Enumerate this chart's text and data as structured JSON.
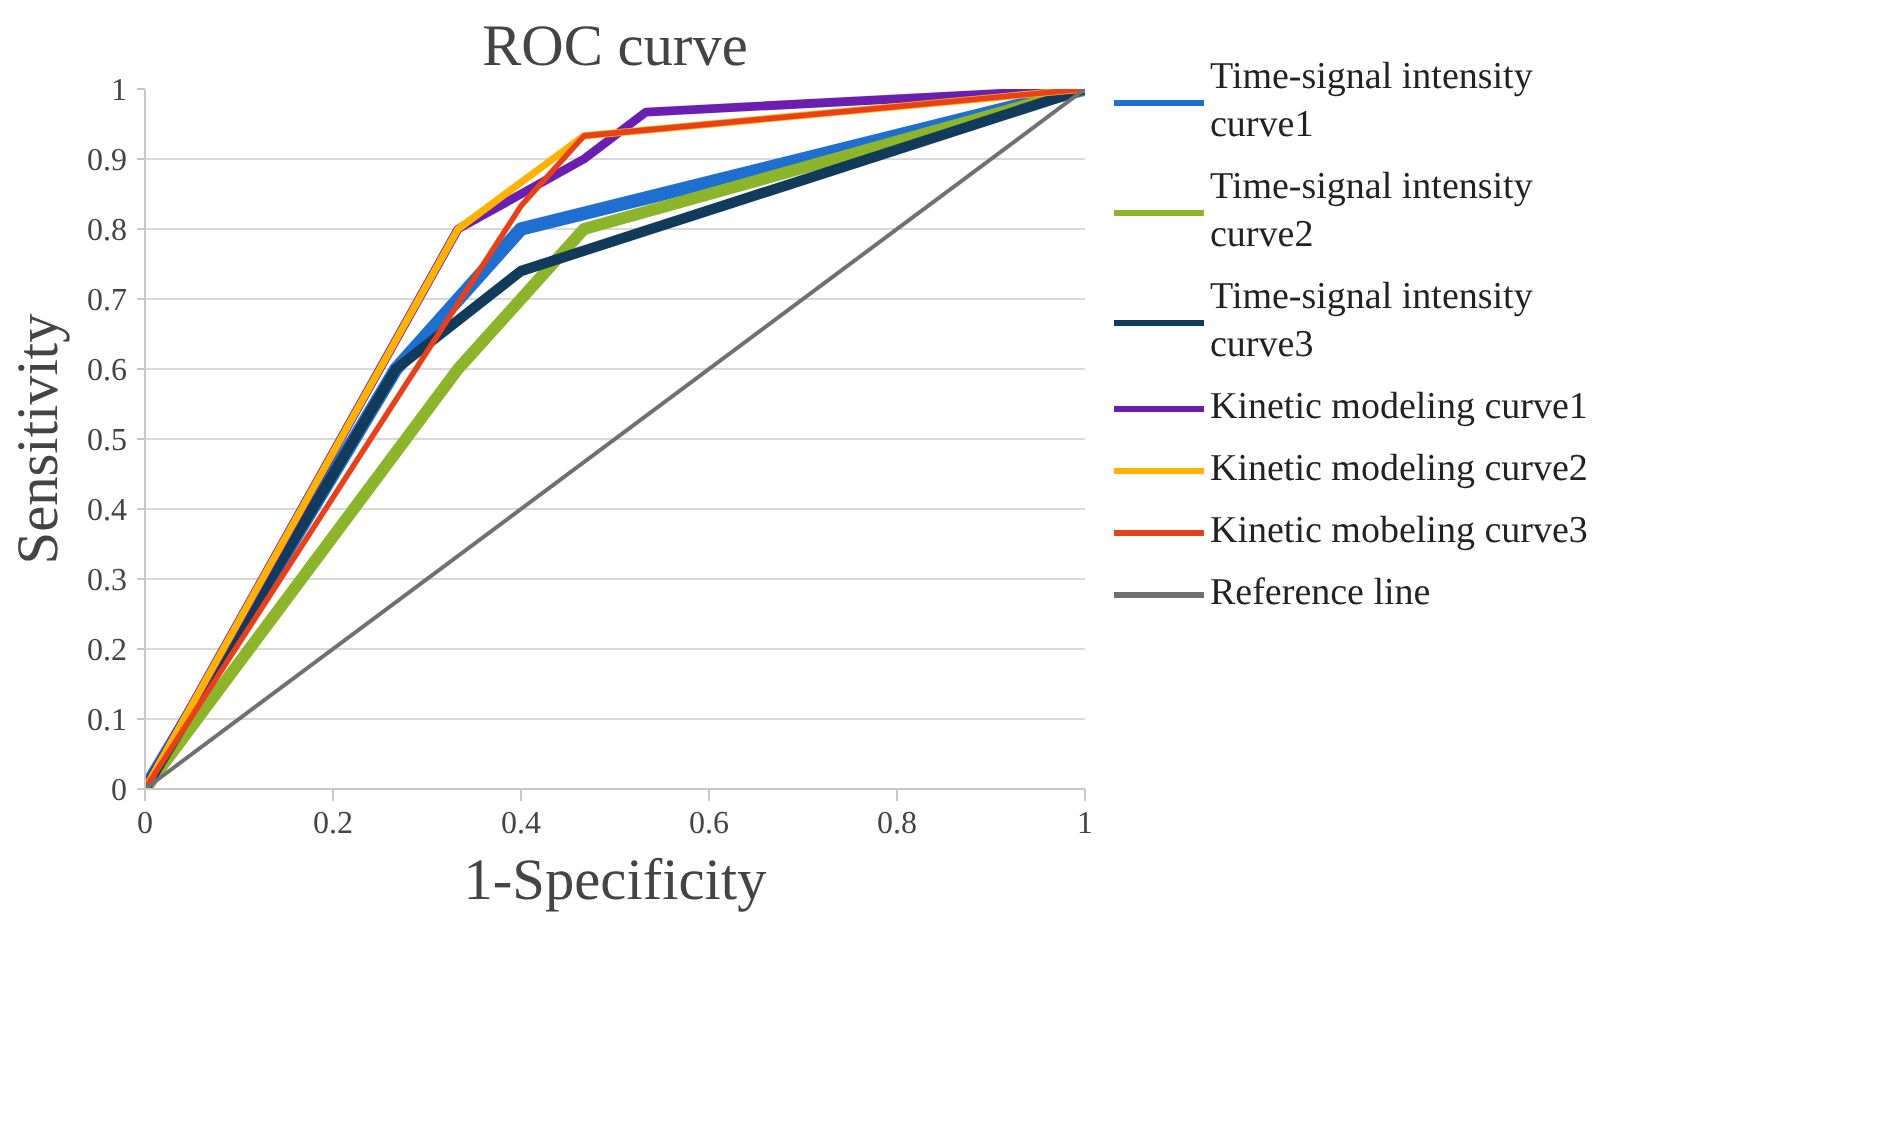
{
  "chart_data": {
    "type": "line",
    "title": "ROC curve",
    "xlabel": "1-Specificity",
    "ylabel": "Sensitivity",
    "xlim": [
      0,
      1
    ],
    "ylim": [
      0,
      1
    ],
    "xticks": [
      0,
      0.2,
      0.4,
      0.6,
      0.8,
      1
    ],
    "yticks": [
      0,
      0.1,
      0.2,
      0.3,
      0.4,
      0.5,
      0.6,
      0.7,
      0.8,
      0.9,
      1
    ],
    "grid": "y",
    "legend": "right",
    "marker": "none",
    "line_style": "solid",
    "series": [
      {
        "name": "Time-signal intensity curve1",
        "color": "#1f6fd0",
        "x": [
          0,
          0.267,
          0.4,
          1
        ],
        "values": [
          0,
          0.6,
          0.8,
          1
        ]
      },
      {
        "name": "Time-signal intensity curve2",
        "color": "#8db52b",
        "x": [
          0,
          0.333,
          0.467,
          1
        ],
        "values": [
          0,
          0.6,
          0.8,
          1
        ]
      },
      {
        "name": "Time-signal intensity curve3",
        "color": "#123a5a",
        "x": [
          0,
          0.267,
          0.4,
          1
        ],
        "values": [
          0,
          0.6,
          0.74,
          1
        ]
      },
      {
        "name": "Kinetic modeling curve1",
        "color": "#6a1fb0",
        "x": [
          0,
          0.333,
          0.467,
          0.533,
          1
        ],
        "values": [
          0,
          0.8,
          0.9,
          0.967,
          1
        ]
      },
      {
        "name": "Kinetic modeling curve2",
        "color": "#ffb300",
        "x": [
          0,
          0.333,
          0.467,
          1
        ],
        "values": [
          0,
          0.8,
          0.933,
          1
        ]
      },
      {
        "name": "Kinetic mobeling curve3",
        "color": "#e8401a",
        "x": [
          0,
          0.4,
          0.467,
          1
        ],
        "values": [
          0,
          0.833,
          0.933,
          1
        ]
      },
      {
        "name": "Reference line",
        "color": "#707070",
        "x": [
          0,
          1
        ],
        "values": [
          0,
          1
        ]
      }
    ]
  }
}
